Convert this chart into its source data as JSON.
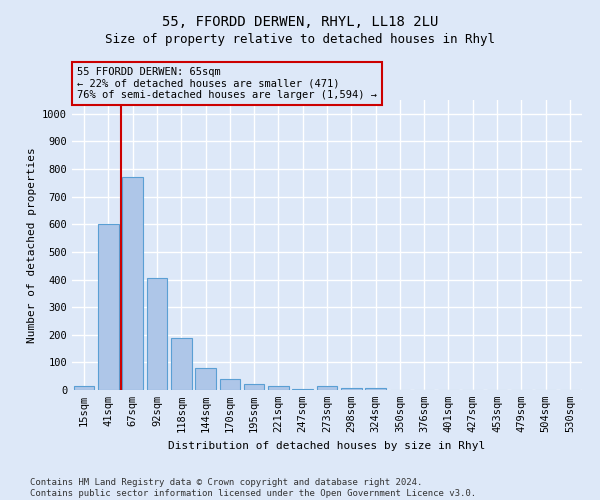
{
  "title": "55, FFORDD DERWEN, RHYL, LL18 2LU",
  "subtitle": "Size of property relative to detached houses in Rhyl",
  "xlabel": "Distribution of detached houses by size in Rhyl",
  "ylabel": "Number of detached properties",
  "footnote": "Contains HM Land Registry data © Crown copyright and database right 2024.\nContains public sector information licensed under the Open Government Licence v3.0.",
  "bar_categories": [
    "15sqm",
    "41sqm",
    "67sqm",
    "92sqm",
    "118sqm",
    "144sqm",
    "170sqm",
    "195sqm",
    "221sqm",
    "247sqm",
    "273sqm",
    "298sqm",
    "324sqm",
    "350sqm",
    "376sqm",
    "401sqm",
    "427sqm",
    "453sqm",
    "479sqm",
    "504sqm",
    "530sqm"
  ],
  "bar_values": [
    15,
    600,
    770,
    405,
    190,
    80,
    40,
    20,
    15,
    5,
    13,
    8,
    6,
    0,
    0,
    0,
    0,
    0,
    0,
    0,
    0
  ],
  "bar_color": "#aec6e8",
  "bar_edge_color": "#5a9fd4",
  "ylim": [
    0,
    1050
  ],
  "yticks": [
    0,
    100,
    200,
    300,
    400,
    500,
    600,
    700,
    800,
    900,
    1000
  ],
  "property_line_x": 1.5,
  "property_line_color": "#cc0000",
  "annotation_text": "55 FFORDD DERWEN: 65sqm\n← 22% of detached houses are smaller (471)\n76% of semi-detached houses are larger (1,594) →",
  "annotation_box_color": "#cc0000",
  "background_color": "#dde8f8",
  "grid_color": "#ffffff",
  "title_fontsize": 10,
  "subtitle_fontsize": 9,
  "footnote_fontsize": 6.5,
  "axis_fontsize": 8,
  "tick_fontsize": 7.5,
  "annotation_fontsize": 7.5
}
